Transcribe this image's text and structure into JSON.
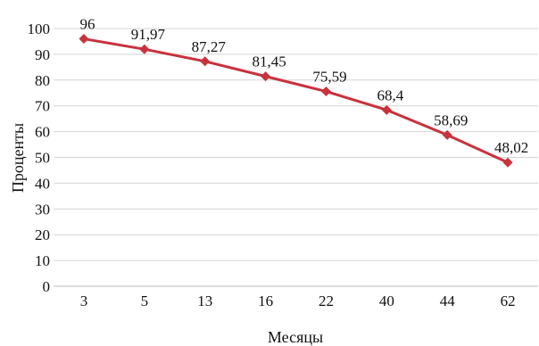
{
  "chart_data": {
    "type": "line",
    "categories": [
      "3",
      "5",
      "13",
      "16",
      "22",
      "40",
      "44",
      "62"
    ],
    "series": [
      {
        "values": [
          96,
          91.97,
          87.27,
          81.45,
          75.59,
          68.4,
          58.69,
          48.02
        ],
        "labels": [
          "96",
          "91,97",
          "87,27",
          "81,45",
          "75,59",
          "68,4",
          "58,69",
          "48,02"
        ]
      }
    ],
    "xlabel": "Месяцы",
    "ylabel": "Проценты",
    "ylim": [
      0,
      100
    ],
    "yticks": [
      0,
      10,
      20,
      30,
      40,
      50,
      60,
      70,
      80,
      90,
      100
    ],
    "grid": true,
    "line_color": "#c8323c",
    "marker": "diamond"
  }
}
